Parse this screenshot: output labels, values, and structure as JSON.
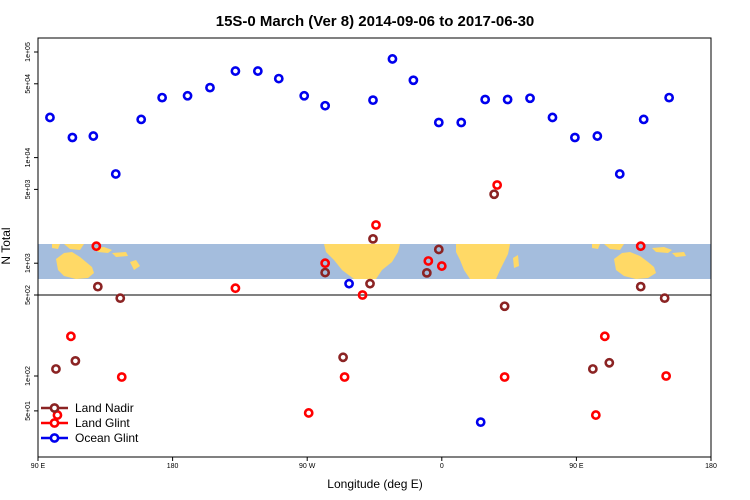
{
  "chart_data": {
    "type": "scatter",
    "title": "15S-0 March (Ver 8)   2014-09-06 to 2017-06-30",
    "xlabel": "Longitude (deg E)",
    "ylabel": "N Total",
    "y_scale": "log",
    "x_ticks": [
      {
        "value": 90,
        "label": "90 E"
      },
      {
        "value": 180,
        "label": "180"
      },
      {
        "value": 270,
        "label": "90 W"
      },
      {
        "value": 360,
        "label": "0"
      },
      {
        "value": 450,
        "label": "90 E"
      },
      {
        "value": 540,
        "label": "180"
      }
    ],
    "y_ticks_upper": [
      {
        "value": 500,
        "label": "5e+02"
      },
      {
        "value": 1000,
        "label": "1e+03"
      },
      {
        "value": 5000,
        "label": "5e+03"
      },
      {
        "value": 10000,
        "label": "1e+04"
      },
      {
        "value": 50000,
        "label": "5e+04"
      },
      {
        "value": 100000,
        "label": "1e+05"
      }
    ],
    "y_ticks_lower": [
      {
        "value": 50,
        "label": "5e+01"
      },
      {
        "value": 100,
        "label": "1e+02"
      }
    ],
    "legend": {
      "position": "bottom-left",
      "entries": [
        {
          "name": "Land Nadir",
          "color": "#8b2323"
        },
        {
          "name": "Land Glint",
          "color": "#ff0000"
        },
        {
          "name": "Ocean Glint",
          "color": "#0000ee"
        }
      ]
    },
    "colors": {
      "land_nadir": "#8b2323",
      "land_glint": "#ff0000",
      "ocean_glint": "#0000ee",
      "ocean": "#a4bddd",
      "land": "#ffd966"
    },
    "series": [
      {
        "name": "Ocean Glint",
        "points": [
          {
            "x": 98,
            "y": 24000
          },
          {
            "x": 113,
            "y": 15500
          },
          {
            "x": 127,
            "y": 16000
          },
          {
            "x": 142,
            "y": 7000
          },
          {
            "x": 159,
            "y": 23000
          },
          {
            "x": 173,
            "y": 37000
          },
          {
            "x": 190,
            "y": 38500
          },
          {
            "x": 205,
            "y": 46000
          },
          {
            "x": 222,
            "y": 66000
          },
          {
            "x": 237,
            "y": 66000
          },
          {
            "x": 251,
            "y": 56000
          },
          {
            "x": 268,
            "y": 38500
          },
          {
            "x": 282,
            "y": 31000
          },
          {
            "x": 298,
            "y": 640
          },
          {
            "x": 314,
            "y": 35000
          },
          {
            "x": 327,
            "y": 86000
          },
          {
            "x": 341,
            "y": 54000
          },
          {
            "x": 358,
            "y": 21500
          },
          {
            "x": 373,
            "y": 21500
          },
          {
            "x": 386,
            "y": 40
          },
          {
            "x": 389,
            "y": 35500
          },
          {
            "x": 404,
            "y": 35500
          },
          {
            "x": 419,
            "y": 36500
          },
          {
            "x": 434,
            "y": 24000
          },
          {
            "x": 449,
            "y": 15500
          },
          {
            "x": 464,
            "y": 16000
          },
          {
            "x": 479,
            "y": 7000
          },
          {
            "x": 495,
            "y": 23000
          },
          {
            "x": 512,
            "y": 37000
          }
        ]
      },
      {
        "name": "Land Nadir",
        "points": [
          {
            "x": 102,
            "y": 115
          },
          {
            "x": 115,
            "y": 135
          },
          {
            "x": 130,
            "y": 600
          },
          {
            "x": 145,
            "y": 470
          },
          {
            "x": 282,
            "y": 815
          },
          {
            "x": 294,
            "y": 145
          },
          {
            "x": 314,
            "y": 1700
          },
          {
            "x": 312,
            "y": 640
          },
          {
            "x": 350,
            "y": 810
          },
          {
            "x": 358,
            "y": 1350
          },
          {
            "x": 395,
            "y": 4500
          },
          {
            "x": 402,
            "y": 400
          },
          {
            "x": 461,
            "y": 115
          },
          {
            "x": 472,
            "y": 130
          },
          {
            "x": 493,
            "y": 600
          },
          {
            "x": 509,
            "y": 470
          }
        ]
      },
      {
        "name": "Land Glint",
        "points": [
          {
            "x": 103,
            "y": 46
          },
          {
            "x": 112,
            "y": 220
          },
          {
            "x": 129,
            "y": 1450
          },
          {
            "x": 146,
            "y": 98
          },
          {
            "x": 222,
            "y": 580
          },
          {
            "x": 271,
            "y": 48
          },
          {
            "x": 282,
            "y": 1000
          },
          {
            "x": 295,
            "y": 98
          },
          {
            "x": 307,
            "y": 500
          },
          {
            "x": 316,
            "y": 2300
          },
          {
            "x": 351,
            "y": 1050
          },
          {
            "x": 360,
            "y": 940
          },
          {
            "x": 397,
            "y": 5500
          },
          {
            "x": 402,
            "y": 98
          },
          {
            "x": 463,
            "y": 46
          },
          {
            "x": 469,
            "y": 220
          },
          {
            "x": 493,
            "y": 1450
          },
          {
            "x": 510,
            "y": 100
          }
        ]
      }
    ]
  }
}
